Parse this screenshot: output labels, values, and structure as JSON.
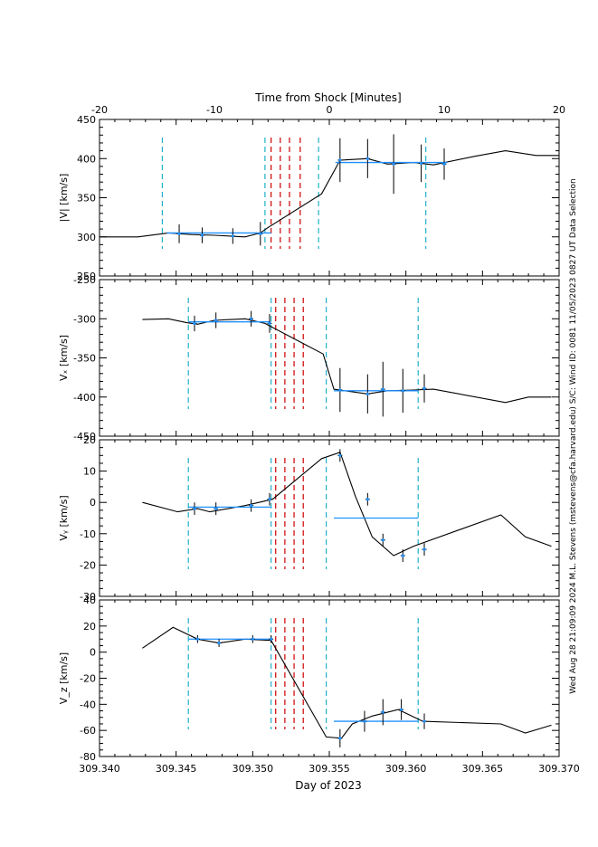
{
  "figure": {
    "top_axis_label": "Time from Shock [Minutes]",
    "bottom_axis_label": "Day of 2023",
    "side_annotation": "Wed Aug 28 21:09:09 2024   M.L. Stevens (mstevens@cfa.harvard.edu)   S/C: Wind ID: 0081 11/05/2023  0827 UT Data Selection",
    "colors": {
      "trace": "#000000",
      "mean": "#1e90ff",
      "window": "#20b2c8",
      "shock": "#cc0000"
    }
  },
  "chart_data": [
    {
      "type": "line",
      "ylabel": "|V| [km/s]",
      "ylim": [
        250,
        450
      ],
      "yticks": [
        250,
        300,
        350,
        400,
        450
      ],
      "xlim": [
        309.34,
        309.37
      ],
      "xticks": [
        "309.340",
        "309.345",
        "309.350",
        "309.355",
        "309.360",
        "309.365",
        "309.370"
      ],
      "top_xlim": [
        -20,
        20
      ],
      "top_xticks": [
        "-20",
        "-10",
        "0",
        "10",
        "20"
      ],
      "trace": {
        "x": [
          309.34,
          309.3425,
          309.3445,
          309.346,
          309.3475,
          309.3495,
          309.3505,
          309.351,
          309.3545,
          309.3557,
          309.3575,
          309.3588,
          309.3605,
          309.3618,
          309.3645,
          309.3665,
          309.3685,
          309.37
        ],
        "y": [
          300,
          300,
          305,
          303,
          302,
          300,
          305,
          312,
          355,
          398,
          400,
          393,
          395,
          392,
          403,
          410,
          404,
          404
        ]
      },
      "points": [
        {
          "x": 309.3452,
          "y": 304,
          "err": 12
        },
        {
          "x": 309.3467,
          "y": 302,
          "err": 10
        },
        {
          "x": 309.3487,
          "y": 301,
          "err": 10
        },
        {
          "x": 309.3505,
          "y": 304,
          "err": 15
        },
        {
          "x": 309.3557,
          "y": 398,
          "err": 28
        },
        {
          "x": 309.3575,
          "y": 400,
          "err": 25
        },
        {
          "x": 309.3592,
          "y": 393,
          "err": 38
        },
        {
          "x": 309.361,
          "y": 394,
          "err": 24
        },
        {
          "x": 309.3625,
          "y": 393,
          "err": 20
        }
      ],
      "means": [
        {
          "x1": 309.3444,
          "x2": 309.3512,
          "y": 305
        },
        {
          "x1": 309.3554,
          "x2": 309.3627,
          "y": 395
        }
      ],
      "windows": [
        309.3441,
        309.3508,
        309.3543,
        309.3613
      ],
      "shock_lines": [
        309.3512,
        309.3518,
        309.3524,
        309.3531
      ]
    },
    {
      "type": "line",
      "ylabel": "Vₓ [km/s]",
      "ylim": [
        -450,
        -250
      ],
      "yticks": [
        -450,
        -400,
        -350,
        -300,
        -250
      ],
      "xlim": [
        309.34,
        309.37
      ],
      "trace": {
        "x": [
          309.3428,
          309.3445,
          309.3457,
          309.3464,
          309.3475,
          309.3495,
          309.3508,
          309.3546,
          309.3553,
          309.356,
          309.3575,
          309.3588,
          309.3605,
          309.3618,
          309.3665,
          309.368,
          309.3695
        ],
        "y": [
          -301,
          -300,
          -305,
          -307,
          -302,
          -300,
          -306,
          -345,
          -390,
          -392,
          -396,
          -392,
          -391,
          -390,
          -407,
          -400,
          -400
        ]
      },
      "points": [
        {
          "x": 309.3462,
          "y": -306,
          "err": 10
        },
        {
          "x": 309.3476,
          "y": -302,
          "err": 10
        },
        {
          "x": 309.3499,
          "y": -300,
          "err": 10
        },
        {
          "x": 309.3511,
          "y": -306,
          "err": 12
        },
        {
          "x": 309.3557,
          "y": -391,
          "err": 28
        },
        {
          "x": 309.3575,
          "y": -396,
          "err": 25
        },
        {
          "x": 309.3585,
          "y": -390,
          "err": 35
        },
        {
          "x": 309.3598,
          "y": -392,
          "err": 28
        },
        {
          "x": 309.3612,
          "y": -389,
          "err": 18
        }
      ],
      "means": [
        {
          "x1": 309.3458,
          "x2": 309.3512,
          "y": -304
        },
        {
          "x1": 309.3553,
          "x2": 309.3608,
          "y": -392
        }
      ],
      "windows": [
        309.3458,
        309.3512,
        309.3548,
        309.3608
      ],
      "shock_lines": [
        309.3515,
        309.3521,
        309.3527,
        309.3533
      ]
    },
    {
      "type": "line",
      "ylabel": "Vᵧ [km/s]",
      "ylim": [
        -30,
        20
      ],
      "yticks": [
        -30,
        -20,
        -10,
        0,
        10,
        20
      ],
      "xlim": [
        309.34,
        309.37
      ],
      "trace": {
        "x": [
          309.3428,
          309.3451,
          309.3464,
          309.3472,
          309.3495,
          309.3513,
          309.3545,
          309.3557,
          309.3567,
          309.3578,
          309.3592,
          309.3605,
          309.3662,
          309.3678,
          309.3695
        ],
        "y": [
          0,
          -3,
          -2,
          -3,
          -1,
          1,
          14,
          16,
          2,
          -11,
          -17,
          -14,
          -4,
          -11,
          -14
        ]
      },
      "points": [
        {
          "x": 309.3462,
          "y": -2,
          "err": 2
        },
        {
          "x": 309.3476,
          "y": -2,
          "err": 2
        },
        {
          "x": 309.3499,
          "y": -1,
          "err": 2
        },
        {
          "x": 309.3511,
          "y": 1,
          "err": 2
        },
        {
          "x": 309.3557,
          "y": 15,
          "err": 2
        },
        {
          "x": 309.3575,
          "y": 1,
          "err": 2
        },
        {
          "x": 309.3585,
          "y": -12,
          "err": 2
        },
        {
          "x": 309.3598,
          "y": -17,
          "err": 2
        },
        {
          "x": 309.3612,
          "y": -15,
          "err": 2
        }
      ],
      "means": [
        {
          "x1": 309.3458,
          "x2": 309.3512,
          "y": -1.5
        },
        {
          "x1": 309.3553,
          "x2": 309.3608,
          "y": -5
        }
      ],
      "windows": [
        309.3458,
        309.3512,
        309.3548,
        309.3608
      ],
      "shock_lines": [
        309.3515,
        309.3521,
        309.3527,
        309.3533
      ]
    },
    {
      "type": "line",
      "ylabel": "V_z [km/s]",
      "ylim": [
        -80,
        40
      ],
      "yticks": [
        -80,
        -60,
        -40,
        -20,
        0,
        20,
        40
      ],
      "xlim": [
        309.34,
        309.37
      ],
      "xticks": [
        "309.340",
        "309.345",
        "309.350",
        "309.355",
        "309.360",
        "309.365",
        "309.370"
      ],
      "trace": {
        "x": [
          309.3428,
          309.3448,
          309.3464,
          309.3478,
          309.3495,
          309.3512,
          309.3548,
          309.3558,
          309.3565,
          309.3578,
          309.3595,
          309.3611,
          309.3662,
          309.3678,
          309.3695
        ],
        "y": [
          3,
          19,
          10,
          7,
          10,
          9,
          -65,
          -66,
          -55,
          -49,
          -44,
          -53,
          -55,
          -62,
          -56
        ]
      },
      "points": [
        {
          "x": 309.3464,
          "y": 10,
          "err": 3
        },
        {
          "x": 309.3478,
          "y": 7,
          "err": 3
        },
        {
          "x": 309.35,
          "y": 10,
          "err": 3
        },
        {
          "x": 309.3512,
          "y": 10,
          "err": 3
        },
        {
          "x": 309.3557,
          "y": -66,
          "err": 7
        },
        {
          "x": 309.3573,
          "y": -53,
          "err": 8
        },
        {
          "x": 309.3585,
          "y": -46,
          "err": 10
        },
        {
          "x": 309.3597,
          "y": -44,
          "err": 8
        },
        {
          "x": 309.3612,
          "y": -53,
          "err": 6
        }
      ],
      "means": [
        {
          "x1": 309.3458,
          "x2": 309.3512,
          "y": 10
        },
        {
          "x1": 309.3553,
          "x2": 309.3608,
          "y": -53
        }
      ],
      "windows": [
        309.3458,
        309.3512,
        309.3548,
        309.3608
      ],
      "shock_lines": [
        309.3515,
        309.3521,
        309.3527,
        309.3533
      ]
    }
  ]
}
